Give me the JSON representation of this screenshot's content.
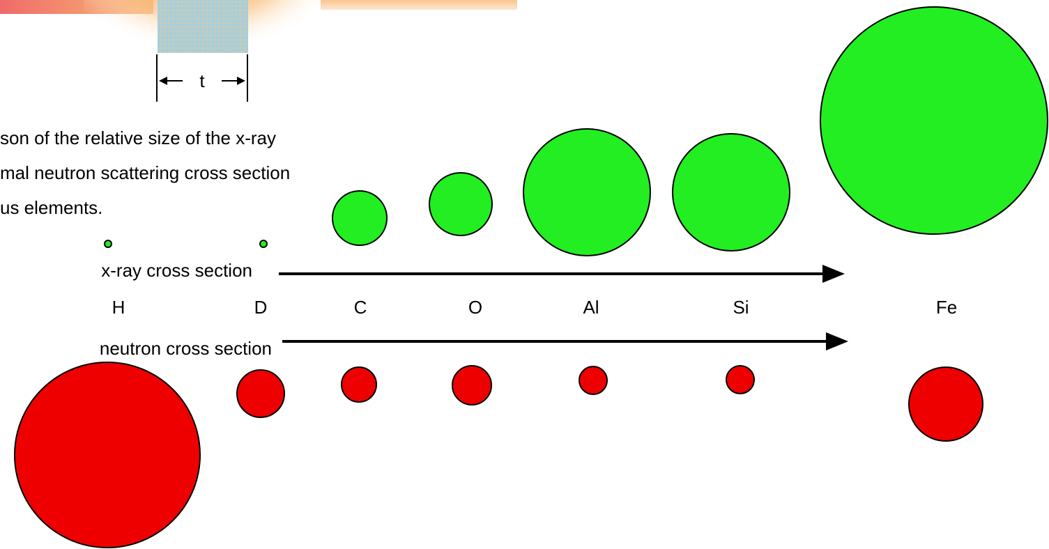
{
  "thickness_label": "t",
  "caption": {
    "lines": [
      "son of the relative size of the x-ray",
      "mal neutron scattering cross section",
      "us elements."
    ]
  },
  "xray_label": "x-ray cross section",
  "neutron_label": "neutron cross section",
  "elements": [
    "H",
    "D",
    "C",
    "O",
    "Al",
    "Si",
    "Fe"
  ]
}
